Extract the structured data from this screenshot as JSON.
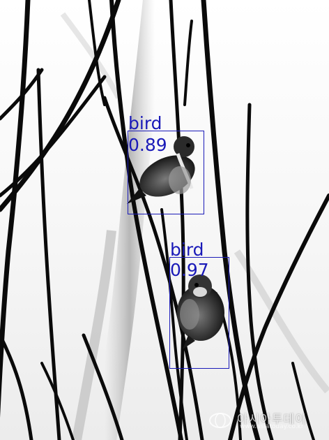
{
  "image": {
    "subject": "sparrows",
    "palette": {
      "background": "#ffffff",
      "branch": "#0a0a0a",
      "bird_dark": "#1c1c1c",
      "bird_mid": "#6a6a6a",
      "box_color": "#1a1ab8"
    }
  },
  "detections": [
    {
      "label": "bird",
      "score": "0.89"
    },
    {
      "label": "bird",
      "score": "0.97"
    }
  ],
  "watermark": {
    "text": "아시아투데이",
    "sub": "www.asiatoday.co.kr"
  }
}
